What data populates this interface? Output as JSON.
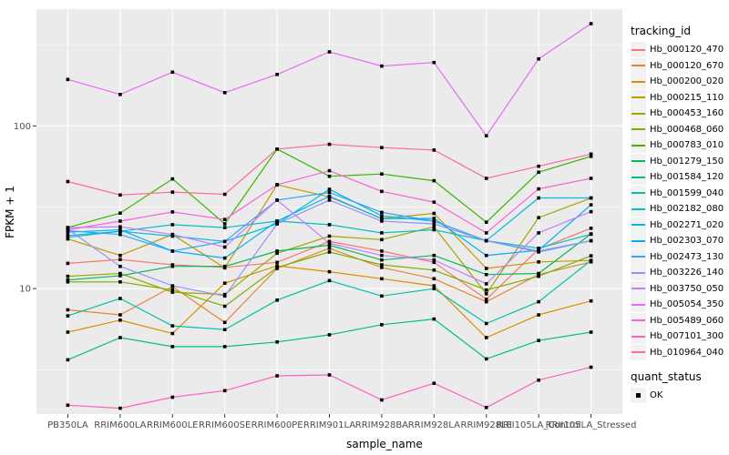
{
  "chart_data": {
    "type": "line",
    "title": "",
    "xlabel": "sample_name",
    "ylabel": "FPKM + 1",
    "y_scale": "log10",
    "ylim": [
      1.695,
      522
    ],
    "y_major_ticks": [
      10,
      100
    ],
    "y_minor_ticks": [
      3.162,
      31.62,
      316.2
    ],
    "grid": "on",
    "legend_position": "right",
    "legend_title": "tracking_id",
    "point_shape": "filled-square",
    "point_color": "#000000",
    "categories": [
      "PB350LA",
      "RRIM600LA",
      "RRIM600LE",
      "RRIM600SE",
      "RRIM600PE",
      "RRIM901LA",
      "RRIM928BA",
      "RRIM928LA",
      "RRIM928LE",
      "RRII105LA_Control",
      "RRII105LA_Stressed"
    ],
    "series": [
      {
        "name": "Hb_000120_470",
        "color": "#F8766D",
        "values": [
          14.3,
          15.1,
          14.0,
          13.5,
          14.5,
          19.5,
          17.0,
          14.5,
          8.6,
          17.5,
          23.5
        ]
      },
      {
        "name": "Hb_000120_670",
        "color": "#EA8331",
        "values": [
          7.4,
          6.9,
          10.3,
          6.2,
          13.3,
          17.7,
          13.5,
          11.5,
          8.3,
          12.2,
          14.6
        ]
      },
      {
        "name": "Hb_000200_020",
        "color": "#D89000",
        "values": [
          5.4,
          6.4,
          5.3,
          10.8,
          13.8,
          12.7,
          11.5,
          10.4,
          5.0,
          6.9,
          8.4
        ]
      },
      {
        "name": "Hb_000215_110",
        "color": "#C09B00",
        "values": [
          20.2,
          16.0,
          21.5,
          13.4,
          43.5,
          36.6,
          27.0,
          29.0,
          13.3,
          14.6,
          14.9
        ]
      },
      {
        "name": "Hb_000453_160",
        "color": "#A3A500",
        "values": [
          11.9,
          12.4,
          9.5,
          9.2,
          16.5,
          21.0,
          20.0,
          24.0,
          9.3,
          27.3,
          36.0
        ]
      },
      {
        "name": "Hb_000468_060",
        "color": "#7CAE00",
        "values": [
          11.0,
          11.0,
          9.8,
          7.8,
          13.5,
          16.8,
          14.0,
          13.0,
          9.8,
          11.9,
          15.9
        ]
      },
      {
        "name": "Hb_000783_010",
        "color": "#39B600",
        "values": [
          23.7,
          29.1,
          47.2,
          25.0,
          72.0,
          49.0,
          50.6,
          46.0,
          25.6,
          51.9,
          65.0
        ]
      },
      {
        "name": "Hb_001279_150",
        "color": "#00BB4E",
        "values": [
          11.3,
          12.0,
          13.7,
          13.7,
          17.0,
          18.5,
          15.0,
          16.0,
          12.2,
          12.4,
          21.7
        ]
      },
      {
        "name": "Hb_001584_120",
        "color": "#00BF7D",
        "values": [
          3.65,
          5.0,
          4.4,
          4.4,
          4.7,
          5.2,
          6.0,
          6.5,
          3.7,
          4.8,
          5.4
        ]
      },
      {
        "name": "Hb_001599_040",
        "color": "#00C1A3",
        "values": [
          6.8,
          8.7,
          5.9,
          5.6,
          8.5,
          11.2,
          9.0,
          10.0,
          6.1,
          8.3,
          14.9
        ]
      },
      {
        "name": "Hb_002182_080",
        "color": "#00BFC4",
        "values": [
          21.2,
          22.5,
          24.7,
          23.7,
          26.0,
          24.7,
          22.0,
          23.0,
          19.7,
          17.7,
          21.6
        ]
      },
      {
        "name": "Hb_002271_020",
        "color": "#00BAE0",
        "values": [
          20.7,
          22.5,
          21.0,
          19.5,
          25.0,
          40.8,
          28.0,
          26.0,
          19.7,
          36.1,
          36.1
        ]
      },
      {
        "name": "Hb_002303_070",
        "color": "#00B0F6",
        "values": [
          22.2,
          23.0,
          17.0,
          15.4,
          26.0,
          37.0,
          26.9,
          27.0,
          16.0,
          17.2,
          32.7
        ]
      },
      {
        "name": "Hb_002473_130",
        "color": "#35A2FF",
        "values": [
          22.7,
          21.5,
          17.0,
          19.5,
          35.0,
          39.0,
          29.4,
          26.0,
          19.7,
          16.8,
          19.7
        ]
      },
      {
        "name": "Hb_003226_140",
        "color": "#9590FF",
        "values": [
          23.2,
          13.7,
          10.4,
          9.0,
          25.0,
          35.0,
          26.0,
          25.0,
          19.7,
          17.0,
          19.7
        ]
      },
      {
        "name": "Hb_003750_050",
        "color": "#C77CFF",
        "values": [
          23.7,
          24.0,
          21.5,
          18.0,
          35.0,
          19.0,
          16.0,
          15.0,
          10.7,
          22.0,
          29.7
        ]
      },
      {
        "name": "Hb_005054_350",
        "color": "#E76BF3",
        "values": [
          193,
          156,
          214,
          160,
          207,
          285,
          233,
          245,
          87,
          258,
          425
        ]
      },
      {
        "name": "Hb_005489_060",
        "color": "#FA62DB",
        "values": [
          23.0,
          26.0,
          29.6,
          26.6,
          43.5,
          53.0,
          39.6,
          34.0,
          22.0,
          41.0,
          47.6
        ]
      },
      {
        "name": "Hb_007101_300",
        "color": "#FF62BC",
        "values": [
          1.92,
          1.84,
          2.15,
          2.36,
          2.91,
          2.95,
          2.07,
          2.62,
          1.86,
          2.74,
          3.29
        ]
      },
      {
        "name": "Hb_010964_040",
        "color": "#FF6A98",
        "values": [
          45.5,
          37.6,
          39.2,
          38.0,
          72.0,
          77.0,
          73.5,
          71.0,
          47.6,
          56.5,
          67.1
        ]
      }
    ],
    "quant_legend": {
      "title": "quant_status",
      "items": [
        {
          "label": "OK",
          "shape": "filled-square",
          "color": "#000000"
        }
      ]
    }
  },
  "style_colors": {
    "panel_background": "#EBEBEB",
    "grid_color": "#FFFFFF",
    "axis_text_color": "#4D4D4D",
    "axis_title_color": "#000000",
    "tick_color": "#333333",
    "legend_key_background": "#F2F2F2"
  }
}
